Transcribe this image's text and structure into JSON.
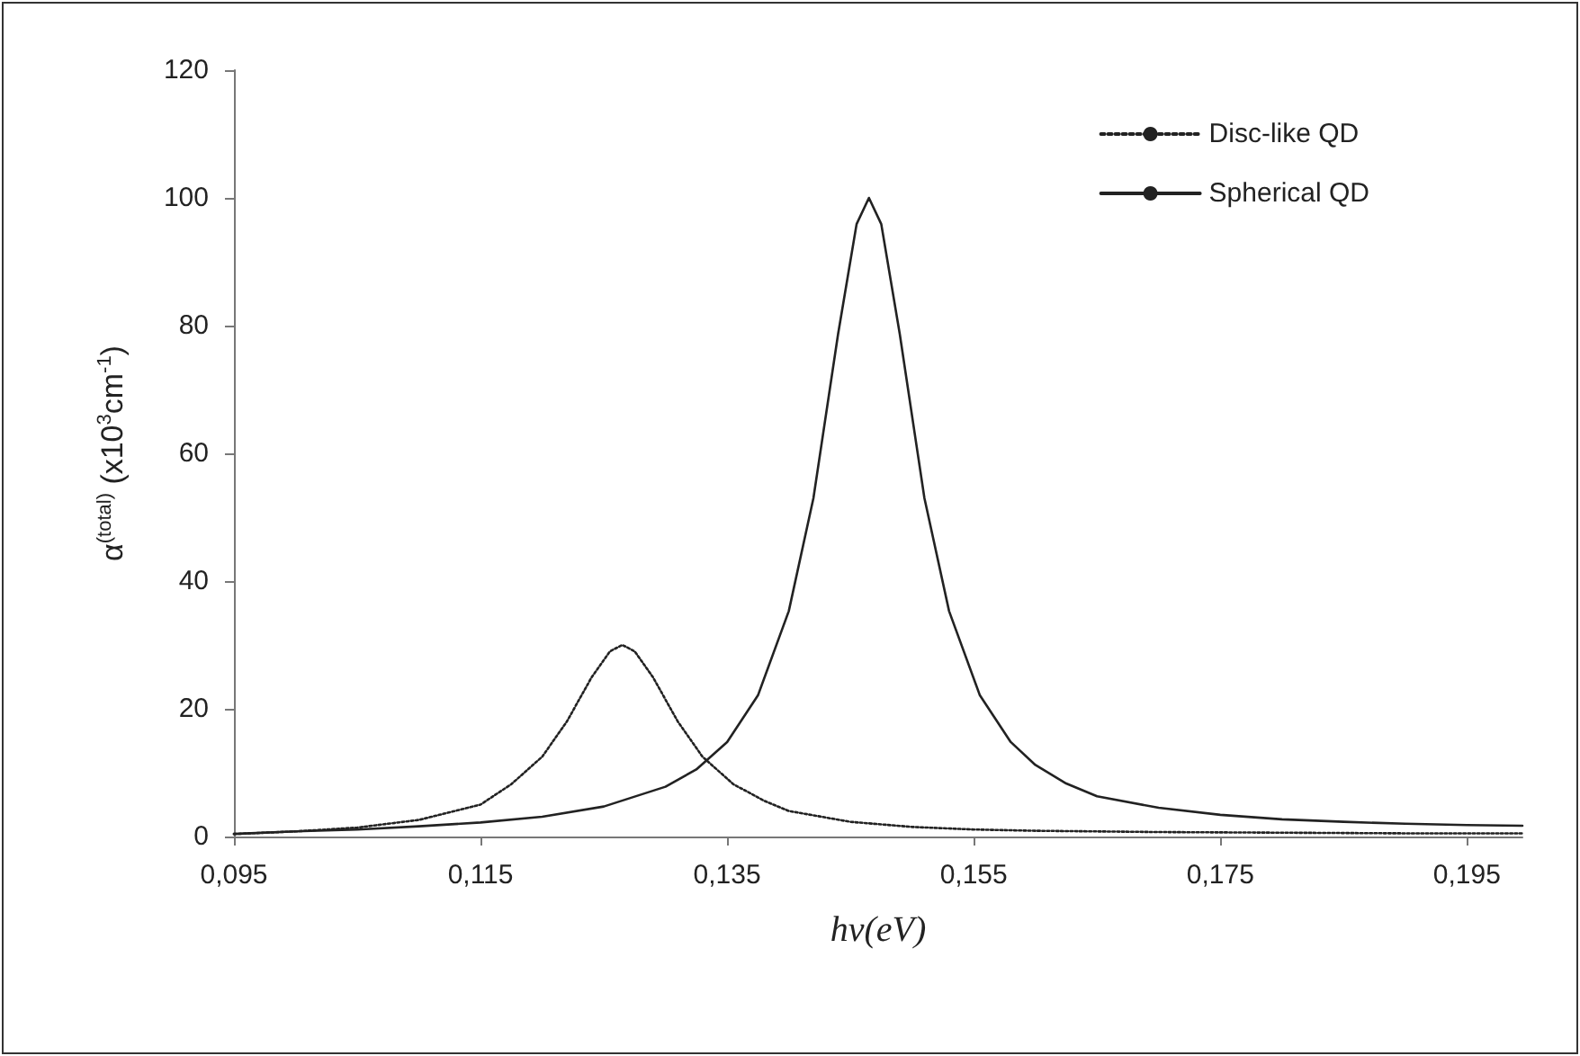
{
  "chart_data": {
    "type": "line",
    "xlabel": "hν(eV)",
    "ylabel": "α$^{(total)}$ (x10$^{3}$cm$^{-1}$)",
    "series": [
      {
        "name": "Disc-like QD",
        "color": "#222222",
        "line_style": "dotted",
        "x": [
          0.095,
          0.1,
          0.105,
          0.11,
          0.115,
          0.1175,
          0.12,
          0.122,
          0.124,
          0.1255,
          0.1265,
          0.1275,
          0.129,
          0.131,
          0.133,
          0.1355,
          0.138,
          0.14,
          0.145,
          0.15,
          0.155,
          0.16,
          0.17,
          0.18,
          0.19,
          0.1995
        ],
        "values": [
          0.4,
          0.8,
          1.4,
          2.6,
          5,
          8.2,
          12.5,
          18,
          24.9,
          29,
          30,
          29,
          24.9,
          18,
          12.5,
          8.2,
          5.6,
          4,
          2.3,
          1.5,
          1.1,
          0.9,
          0.7,
          0.6,
          0.5,
          0.5
        ]
      },
      {
        "name": "Spherical QD",
        "color": "#222222",
        "line_style": "solid",
        "x": [
          0.095,
          0.1,
          0.105,
          0.11,
          0.115,
          0.12,
          0.125,
          0.13,
          0.1325,
          0.135,
          0.1375,
          0.14,
          0.142,
          0.144,
          0.1455,
          0.1465,
          0.1475,
          0.149,
          0.151,
          0.153,
          0.1555,
          0.158,
          0.16,
          0.1625,
          0.165,
          0.17,
          0.175,
          0.18,
          0.185,
          0.19,
          0.195,
          0.1995
        ],
        "values": [
          0.4,
          0.8,
          1.1,
          1.6,
          2.2,
          3.1,
          4.7,
          7.8,
          10.5,
          14.8,
          22.1,
          35.3,
          53,
          78.7,
          95.9,
          100,
          95.9,
          78.7,
          53,
          35.3,
          22.1,
          14.8,
          11.2,
          8.3,
          6.3,
          4.5,
          3.4,
          2.7,
          2.3,
          2,
          1.8,
          1.7
        ]
      }
    ],
    "xlim": [
      0.095,
      0.1995
    ],
    "xticks": [
      {
        "value": 0.095,
        "label": "0,095"
      },
      {
        "value": 0.115,
        "label": "0,115"
      },
      {
        "value": 0.135,
        "label": "0,135"
      },
      {
        "value": 0.155,
        "label": "0,155"
      },
      {
        "value": 0.175,
        "label": "0,175"
      },
      {
        "value": 0.195,
        "label": "0,195"
      }
    ],
    "ylim": [
      0,
      120
    ],
    "yticks": [
      0,
      20,
      40,
      60,
      80,
      100,
      120
    ],
    "grid": false,
    "legend": "top right",
    "marker": "none"
  }
}
